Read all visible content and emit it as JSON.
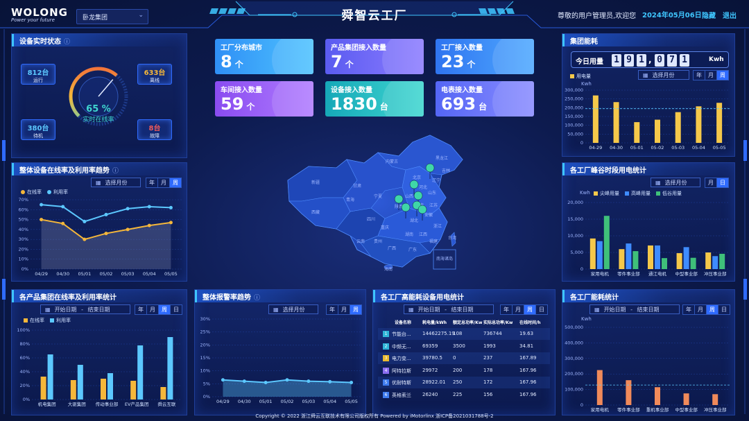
{
  "header": {
    "logo_main": "WOLONG",
    "logo_sub": "Power your future",
    "group_select": "卧龙集团",
    "title": "舜智云工厂",
    "welcome": "尊敬的用户管理员,欢迎您",
    "date": "2024年05月06日",
    "hide_label": "隐藏",
    "logout_label": "退出"
  },
  "device_status": {
    "title": "设备实时状态",
    "running": {
      "value": "812台",
      "label": "运行"
    },
    "offline": {
      "value": "633台",
      "label": "离线"
    },
    "standby": {
      "value": "380台",
      "label": "待机"
    },
    "fault": {
      "value": "8台",
      "label": "故障"
    },
    "gauge_value": "65 %",
    "gauge_fraction": 0.65,
    "gauge_label": "实时在线率"
  },
  "stats": [
    {
      "label": "工厂分布城市",
      "value": "8",
      "unit": "个",
      "color1": "#2f8ff5",
      "color2": "#4fc3ff"
    },
    {
      "label": "产品集团接入数量",
      "value": "7",
      "unit": "个",
      "color1": "#5a5bf0",
      "color2": "#8c7cff"
    },
    {
      "label": "工厂接入数量",
      "value": "23",
      "unit": "个",
      "color1": "#2f74f0",
      "color2": "#4fa9ff"
    },
    {
      "label": "车间接入数量",
      "value": "59",
      "unit": "个",
      "color1": "#8a4cf0",
      "color2": "#b07cff"
    },
    {
      "label": "设备接入数量",
      "value": "1830",
      "unit": "台",
      "color1": "#16a8b8",
      "color2": "#3fd6d0"
    },
    {
      "label": "电表接入数量",
      "value": "693",
      "unit": "台",
      "color1": "#5466f5",
      "color2": "#8a8cff"
    }
  ],
  "map": {
    "regions": [
      "黑龙江",
      "吉林",
      "辽宁",
      "内蒙古",
      "北京",
      "新疆",
      "甘肃",
      "青海",
      "西藏",
      "四川",
      "重庆",
      "陕西",
      "山西",
      "河南",
      "湖北",
      "湖南",
      "安徽",
      "江苏",
      "浙江",
      "江西",
      "福建",
      "广东",
      "广西",
      "贵州",
      "云南",
      "山东",
      "河北",
      "宁夏",
      "台湾",
      "海南",
      "南海诸岛"
    ]
  },
  "online_trend": {
    "title": "整体设备在线率及利用率趋势",
    "picker": "选择月份",
    "seg": [
      "年",
      "月",
      "周"
    ],
    "active": 2,
    "legend": [
      "在线率",
      "利用率"
    ],
    "colors": [
      "#f5b73a",
      "#5cc8ff"
    ],
    "chart_data": {
      "type": "line",
      "x": [
        "04/29",
        "04/30",
        "05/01",
        "05/02",
        "05/03",
        "05/04",
        "05/05"
      ],
      "ylim": [
        0,
        70
      ],
      "yticks": [
        "0%",
        "10%",
        "20%",
        "30%",
        "40%",
        "50%",
        "60%",
        "70%"
      ],
      "series": [
        {
          "name": "在线率",
          "values": [
            50,
            46,
            30,
            36,
            40,
            44,
            47
          ]
        },
        {
          "name": "利用率",
          "values": [
            65,
            63,
            48,
            55,
            61,
            63,
            62
          ]
        }
      ]
    }
  },
  "group_online": {
    "title": "各产品集团在线率及利用率统计",
    "start": "开始日期",
    "dash": "-",
    "end": "结束日期",
    "seg": [
      "年",
      "月",
      "周",
      "日"
    ],
    "active": 2,
    "legend": [
      "在线率",
      "利用率"
    ],
    "colors": [
      "#f5b73a",
      "#5cc8ff"
    ],
    "chart_data": {
      "type": "bar",
      "categories": [
        "机电集团",
        "大驱集团",
        "传动事业部",
        "EV产品集团",
        "舜云互联"
      ],
      "ylim": [
        0,
        100
      ],
      "yticks": [
        "0%",
        "20%",
        "40%",
        "60%",
        "80%",
        "100%"
      ],
      "series": [
        {
          "name": "在线率",
          "values": [
            33,
            28,
            30,
            27,
            18
          ]
        },
        {
          "name": "利用率",
          "values": [
            65,
            50,
            38,
            78,
            90
          ]
        }
      ]
    }
  },
  "alarm_trend": {
    "title": "整体报警率趋势",
    "picker": "选择月份",
    "seg": [
      "年",
      "月",
      "周"
    ],
    "active": 2,
    "color": "#5cc8ff",
    "chart_data": {
      "type": "area",
      "x": [
        "04/29",
        "04/30",
        "05/01",
        "05/02",
        "05/03",
        "05/04",
        "05/05"
      ],
      "ylim": [
        0,
        30
      ],
      "yticks": [
        "0%",
        "5%",
        "10%",
        "15%",
        "20%",
        "25%",
        "30%"
      ],
      "series": [
        {
          "name": "",
          "values": [
            6.5,
            6,
            5.5,
            6.5,
            6,
            5.8,
            5.5
          ]
        }
      ]
    }
  },
  "high_energy": {
    "title": "各工厂高能耗设备用电统计",
    "start": "开始日期",
    "dash": "-",
    "end": "结束日期",
    "seg": [
      "年",
      "月",
      "周",
      "日"
    ],
    "active": 2,
    "columns": [
      "设备名称",
      "耗电量/kWh",
      "额定总功率/Kw",
      "实际总功率/Kw",
      "在线时间/h"
    ],
    "rows": [
      {
        "idx": "1",
        "name": "节能台...",
        "energy": "14462275.19",
        "rated": "108",
        "actual": "736744",
        "online": "19.63",
        "color": "#2fb5d8"
      },
      {
        "idx": "2",
        "name": "中频无...",
        "energy": "69359",
        "rated": "3500",
        "actual": "1993",
        "online": "34.81",
        "color": "#2fb5d8"
      },
      {
        "idx": "3",
        "name": "电力变...",
        "energy": "39780.5",
        "rated": "0",
        "actual": "237",
        "online": "167.89",
        "color": "#e8b92f"
      },
      {
        "idx": "4",
        "name": "阿特拉斯",
        "energy": "29972",
        "rated": "200",
        "actual": "178",
        "online": "167.96",
        "color": "#8a6cf0"
      },
      {
        "idx": "5",
        "name": "优耐特斯",
        "energy": "28922.01",
        "rated": "250",
        "actual": "172",
        "online": "167.96",
        "color": "#3f7cf0"
      },
      {
        "idx": "6",
        "name": "英格索兰",
        "energy": "26240",
        "rated": "225",
        "actual": "156",
        "online": "167.96",
        "color": "#3f7cf0"
      }
    ]
  },
  "group_energy": {
    "title": "集团能耗",
    "today_label": "今日用量",
    "today_digits": [
      "1",
      "9",
      "1",
      "0",
      "7",
      "1"
    ],
    "today_separator": ",",
    "today_unit": "Kwh",
    "legend": [
      "用电量"
    ],
    "color": "#f5c84a",
    "picker": "选择月份",
    "seg": [
      "年",
      "月",
      "周"
    ],
    "active": 2,
    "unit_label": "Kwh",
    "chart_data": {
      "type": "bar",
      "categories": [
        "04-29",
        "04-30",
        "05-01",
        "05-02",
        "05-03",
        "05-04",
        "05-05"
      ],
      "ylim": [
        0,
        300000
      ],
      "yticks": [
        "0",
        "50,000",
        "100,000",
        "150,000",
        "200,000",
        "250,000",
        "300,000"
      ],
      "series": [
        {
          "name": "用电量",
          "values": [
            270000,
            232000,
            118000,
            132000,
            175000,
            208000,
            228000
          ]
        }
      ]
    }
  },
  "peak_valley": {
    "title": "各工厂峰谷时段用电统计",
    "picker": "选择月份",
    "seg": [
      "月",
      "日"
    ],
    "active": 1,
    "unit_label": "Kwh",
    "legend": [
      "尖峰用量",
      "高峰用量",
      "低谷用量"
    ],
    "colors": [
      "#f5c84a",
      "#3f8cff",
      "#3fc07a"
    ],
    "chart_data": {
      "type": "bar",
      "categories": [
        "家用电机",
        "零件事业部",
        "通江电机",
        "中型事业部",
        "冲压事业部"
      ],
      "ylim": [
        0,
        20000
      ],
      "yticks": [
        "0",
        "5,000",
        "10,000",
        "15,000",
        "20,000"
      ],
      "series": [
        {
          "name": "尖峰用量",
          "values": [
            9200,
            6000,
            7100,
            4800,
            5000
          ]
        },
        {
          "name": "高峰用量",
          "values": [
            8400,
            7700,
            7100,
            6600,
            3900
          ]
        },
        {
          "name": "低谷用量",
          "values": [
            16000,
            5400,
            3300,
            3400,
            4600
          ]
        }
      ]
    }
  },
  "factory_energy": {
    "title": "各工厂能耗统计",
    "start": "开始日期",
    "dash": "-",
    "end": "结束日期",
    "seg": [
      "年",
      "月",
      "周",
      "日"
    ],
    "active": 2,
    "unit_label": "Kwh",
    "color": "#f08a5a",
    "chart_data": {
      "type": "bar",
      "categories": [
        "家用电机",
        "零件事业部",
        "重机事业部",
        "中型事业部",
        "冲压事业部"
      ],
      "ylim": [
        0,
        500000
      ],
      "yticks": [
        "0",
        "100,000",
        "200,000",
        "300,000",
        "400,000",
        "500,000"
      ],
      "series": [
        {
          "name": "",
          "values": [
            225000,
            160000,
            115000,
            75000,
            70000
          ]
        }
      ]
    }
  },
  "footer": "Copyright © 2022 浙江舜云互联技术有限公司版权所有 Powered by iMotorlinx 浙ICP备2021031788号-2"
}
